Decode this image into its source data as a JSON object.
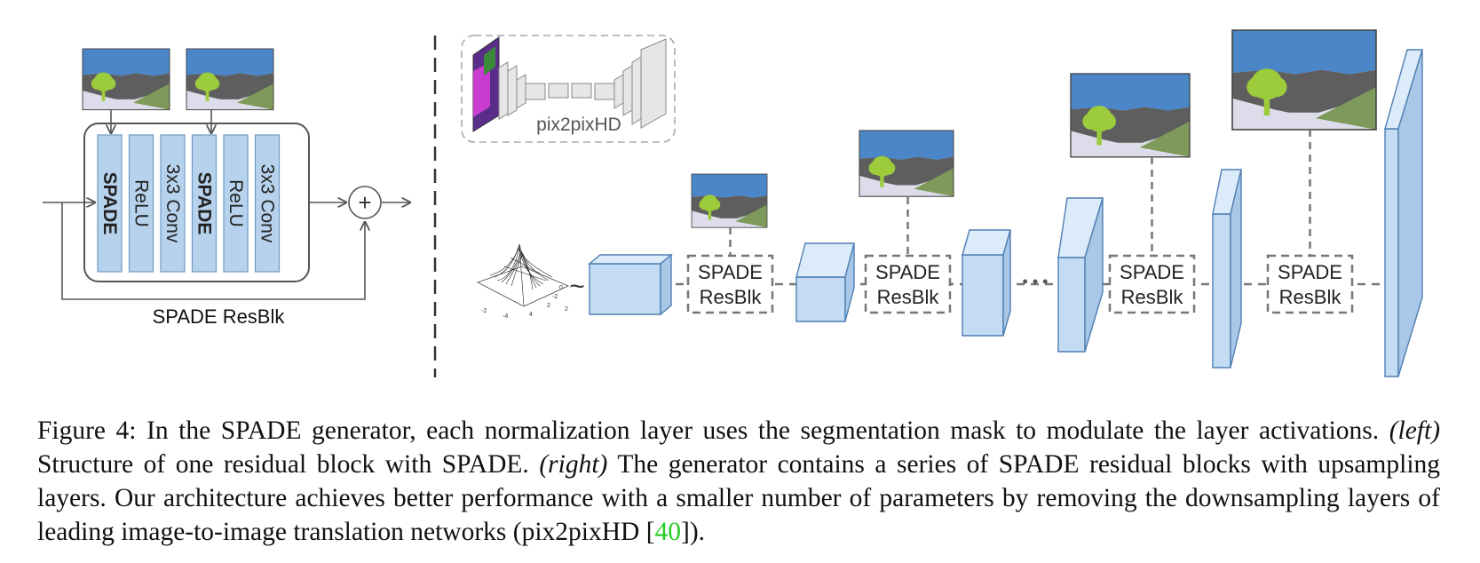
{
  "left_panel": {
    "layers": [
      {
        "label": "SPADE",
        "bold": true
      },
      {
        "label": "ReLU",
        "bold": false
      },
      {
        "label": "3x3 Conv",
        "bold": false
      },
      {
        "label": "SPADE",
        "bold": true
      },
      {
        "label": "ReLU",
        "bold": false
      },
      {
        "label": "3x3 Conv",
        "bold": false
      }
    ],
    "block_label": "SPADE ResBlk",
    "sum_symbol": "+"
  },
  "right_panel": {
    "pix2pix_label": "pix2pixHD",
    "tilde": "~",
    "ellipsis": "• • •",
    "resblk_line1": "SPADE",
    "resblk_line2": "ResBlk",
    "gaussian_ticks": [
      "-2",
      "-4",
      "2",
      "-2",
      "0",
      "2",
      "4"
    ]
  },
  "caption": {
    "figure_label": "Figure 4:",
    "sentence1": "In the SPADE generator, each normalization layer uses the segmentation mask to modulate the layer activations.",
    "left_tag": "(left)",
    "left_text": "Structure of one residual block with SPADE.",
    "right_tag": "(right)",
    "right_text": "The generator contains a series of SPADE residual blocks with upsampling layers.  Our architecture achieves better performance with a smaller number of parameters by removing the downsampling layers of leading image-to-image translation networks (pix2pixHD [",
    "ref_number": "40",
    "ending": "])."
  },
  "colors": {
    "layer_fill": "#b7d2ec",
    "layer_stroke": "#6f9ac6",
    "sky": "#4a86c8",
    "hill": "#5e5e5e",
    "grass": "#7d9a5a",
    "ground": "#dcdcea",
    "tree": "#9ccb3c",
    "dash": "#777777",
    "ref": "#22cc22"
  }
}
